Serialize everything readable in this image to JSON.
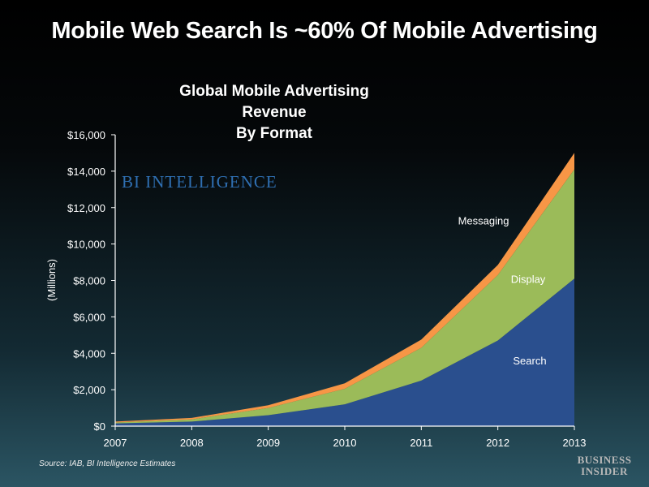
{
  "page": {
    "title": "Mobile Web Search Is ~60% Of Mobile Advertising",
    "source": "Source: IAB, BI Intelligence Estimates",
    "brand_line1": "BUSINESS",
    "brand_line2": "INSIDER"
  },
  "watermark": "BI INTELLIGENCE",
  "chart_data": {
    "type": "area",
    "stacked": true,
    "title": "Global Mobile Advertising Revenue",
    "subtitle": "By Format",
    "xlabel": "",
    "ylabel": "(Millions)",
    "x": [
      "2007",
      "2008",
      "2009",
      "2010",
      "2011",
      "2012",
      "2013"
    ],
    "ylim": [
      0,
      16000
    ],
    "yticks": [
      0,
      2000,
      4000,
      6000,
      8000,
      10000,
      12000,
      14000,
      16000
    ],
    "ytick_labels": [
      "$0",
      "$2,000",
      "$4,000",
      "$6,000",
      "$8,000",
      "$10,000",
      "$12,000",
      "$14,000",
      "$16,000"
    ],
    "grid": false,
    "series": [
      {
        "name": "Search",
        "color": "#2a4f8e",
        "values": [
          150,
          250,
          600,
          1200,
          2500,
          4700,
          8100
        ]
      },
      {
        "name": "Display",
        "color": "#9bbb59",
        "values": [
          50,
          120,
          400,
          850,
          1800,
          3600,
          6000
        ]
      },
      {
        "name": "Messaging",
        "color": "#f79646",
        "values": [
          50,
          80,
          150,
          300,
          450,
          550,
          900
        ]
      }
    ]
  }
}
